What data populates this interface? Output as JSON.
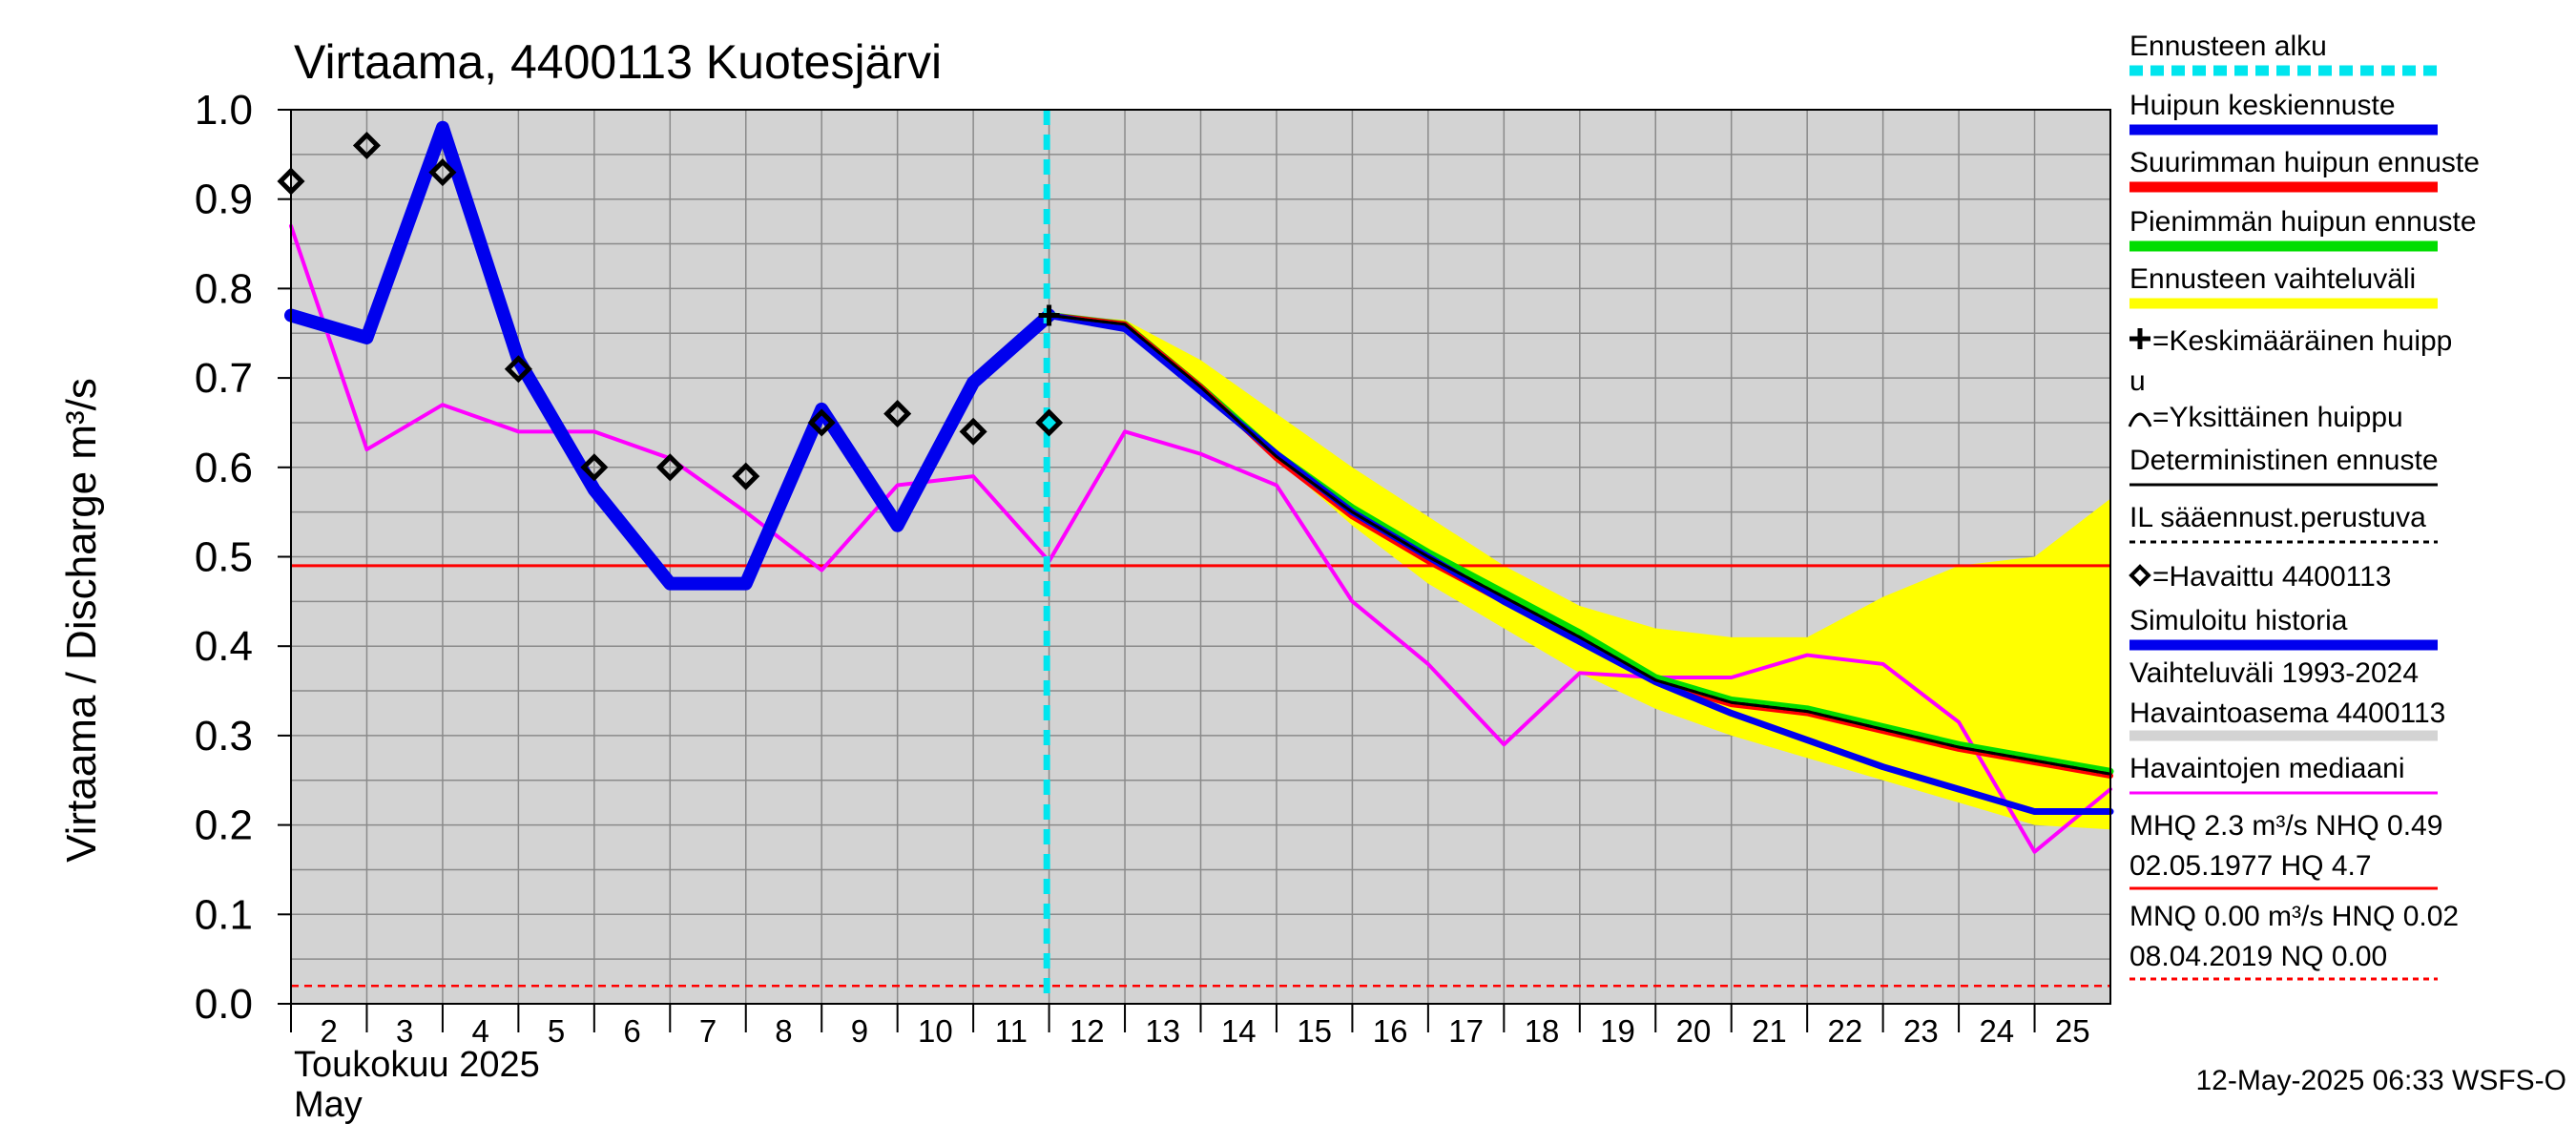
{
  "chart_data": {
    "type": "line",
    "title": "Virtaama, 4400113 Kuotesjärvi",
    "ylabel": "Virtaama / Discharge   m³/s",
    "ylim": [
      0.0,
      1.0
    ],
    "yticks": [
      "0.0",
      "0.1",
      "0.2",
      "0.3",
      "0.4",
      "0.5",
      "0.6",
      "0.7",
      "0.8",
      "0.9",
      "1.0"
    ],
    "x_day_range": [
      2,
      26
    ],
    "xtick_labels": [
      "2",
      "3",
      "4",
      "5",
      "6",
      "7",
      "8",
      "9",
      "10",
      "11",
      "12",
      "13",
      "14",
      "15",
      "16",
      "17",
      "18",
      "19",
      "20",
      "21",
      "22",
      "23",
      "24",
      "25"
    ],
    "month_label_fi": "Toukokuu  2025",
    "month_label_en": "May",
    "forecast_start_day": 11.97,
    "grid": true,
    "reference_lines": {
      "mhq_line": 0.49,
      "mnq_line": 0.02
    },
    "series": [
      {
        "name": "Simuloitu historia",
        "color": "#0000ee",
        "x": [
          2,
          3,
          4,
          5,
          6,
          7,
          8,
          9,
          10,
          11,
          12
        ],
        "y": [
          0.77,
          0.745,
          0.98,
          0.72,
          0.575,
          0.47,
          0.47,
          0.665,
          0.535,
          0.695,
          0.77
        ]
      },
      {
        "name": "Ennusteen vaihteluväli",
        "color": "#ffff00",
        "x": [
          12,
          13,
          14,
          15,
          16,
          17,
          18,
          19,
          20,
          21,
          22,
          23,
          24,
          25,
          26
        ],
        "upper": [
          0.77,
          0.765,
          0.72,
          0.66,
          0.6,
          0.545,
          0.49,
          0.445,
          0.42,
          0.41,
          0.41,
          0.455,
          0.49,
          0.5,
          0.565
        ],
        "lower": [
          0.77,
          0.755,
          0.69,
          0.61,
          0.535,
          0.47,
          0.42,
          0.37,
          0.33,
          0.3,
          0.275,
          0.25,
          0.225,
          0.2,
          0.195
        ]
      },
      {
        "name": "Suurimman huipun ennuste",
        "color": "#ff0000",
        "x": [
          12,
          13,
          14,
          15,
          16,
          17,
          18,
          19,
          20,
          21,
          22,
          23,
          24,
          25,
          26
        ],
        "y": [
          0.77,
          0.76,
          0.69,
          0.61,
          0.545,
          0.495,
          0.45,
          0.405,
          0.36,
          0.335,
          0.325,
          0.305,
          0.285,
          0.27,
          0.255
        ]
      },
      {
        "name": "Pienimmän huipun ennuste",
        "color": "#00dd00",
        "x": [
          12,
          13,
          14,
          15,
          16,
          17,
          18,
          19,
          20,
          21,
          22,
          23,
          24,
          25,
          26
        ],
        "y": [
          0.77,
          0.76,
          0.69,
          0.615,
          0.555,
          0.505,
          0.46,
          0.415,
          0.365,
          0.34,
          0.33,
          0.31,
          0.29,
          0.275,
          0.26
        ]
      },
      {
        "name": "Deterministinen ennuste",
        "color": "#000000",
        "x": [
          12,
          13,
          14,
          15,
          16,
          17,
          18,
          19,
          20,
          21,
          22,
          23,
          24,
          25,
          26
        ],
        "y": [
          0.77,
          0.76,
          0.69,
          0.612,
          0.55,
          0.5,
          0.455,
          0.41,
          0.362,
          0.337,
          0.327,
          0.307,
          0.287,
          0.272,
          0.257
        ]
      },
      {
        "name": "IL sääennust.perustuva",
        "color": "#000000",
        "x": [
          12,
          13,
          14,
          15,
          16,
          17,
          18,
          19,
          20,
          21,
          22,
          23,
          24,
          25,
          26
        ],
        "y": [
          0.77,
          0.76,
          0.69,
          0.612,
          0.55,
          0.5,
          0.455,
          0.41,
          0.362,
          0.337,
          0.327,
          0.307,
          0.287,
          0.272,
          0.257
        ]
      },
      {
        "name": "Huipun keskiennuste",
        "color": "#0000ee",
        "x": [
          12,
          13,
          14,
          15,
          16,
          17,
          18,
          19,
          20,
          21,
          22,
          23,
          24,
          25,
          26
        ],
        "y": [
          0.77,
          0.755,
          0.685,
          0.615,
          0.55,
          0.5,
          0.45,
          0.405,
          0.36,
          0.325,
          0.295,
          0.265,
          0.24,
          0.215,
          0.215
        ]
      },
      {
        "name": "Havaintojen mediaani",
        "color": "#ff00ff",
        "x": [
          2,
          3,
          4,
          5,
          6,
          7,
          8,
          9,
          10,
          11,
          12,
          13,
          14,
          15,
          16,
          17,
          18,
          19,
          20,
          21,
          22,
          23,
          24,
          25,
          26
        ],
        "y": [
          0.87,
          0.62,
          0.67,
          0.64,
          0.64,
          0.61,
          0.55,
          0.485,
          0.58,
          0.59,
          0.495,
          0.64,
          0.615,
          0.58,
          0.45,
          0.38,
          0.29,
          0.37,
          0.365,
          0.365,
          0.39,
          0.38,
          0.315,
          0.17,
          0.24
        ]
      },
      {
        "name": "Havaittu 4400113",
        "color": "#000000",
        "x": [
          2,
          3,
          4,
          5,
          6,
          7,
          8,
          9,
          10,
          11,
          12
        ],
        "y": [
          0.92,
          0.96,
          0.93,
          0.71,
          0.6,
          0.6,
          0.59,
          0.65,
          0.66,
          0.64,
          0.65
        ]
      },
      {
        "name": "Keskimääräinen huippu",
        "color": "#000000",
        "x": [
          12
        ],
        "y": [
          0.77
        ]
      }
    ]
  },
  "legend": {
    "items": [
      {
        "label": "Ennusteen alku",
        "color": "#00e5ee",
        "style": "dashed-thick"
      },
      {
        "label": "Huipun keskiennuste",
        "color": "#0000ee",
        "style": "solid-thick"
      },
      {
        "label": "Suurimman huipun ennuste",
        "color": "#ff0000",
        "style": "solid-thick"
      },
      {
        "label": "Pienimmän huipun ennuste",
        "color": "#00dd00",
        "style": "solid-thick"
      },
      {
        "label": "Ennusteen vaihteluväli",
        "color": "#ffff00",
        "style": "solid-thick"
      },
      {
        "label": "=Keskimääräinen huipp",
        "label2": "u",
        "color": "#000000",
        "style": "none",
        "icon": "plus"
      },
      {
        "label": "=Yksittäinen huippu",
        "color": "#000000",
        "style": "none",
        "icon": "arc"
      },
      {
        "label": "Deterministinen ennuste",
        "color": "#000000",
        "style": "solid-thin"
      },
      {
        "label": "IL sääennust.perustuva",
        "color": "#000000",
        "style": "dashed-thin"
      },
      {
        "label": "=Havaittu 4400113",
        "color": "#000000",
        "style": "none",
        "icon": "diamond"
      },
      {
        "label": "Simuloitu historia",
        "color": "#0000ee",
        "style": "solid-thick"
      },
      {
        "label": "Vaihteluväli 1993-2024",
        "label2": " Havaintoasema 4400113",
        "color": "#d3d3d3",
        "style": "solid-thick"
      },
      {
        "label": "Havaintojen mediaani",
        "color": "#ff00ff",
        "style": "solid-thin"
      },
      {
        "label": "MHQ  2.3 m³/s NHQ 0.49",
        "label2": "02.05.1977 HQ  4.7",
        "color": "#ff0000",
        "style": "solid-thin"
      },
      {
        "label": "MNQ 0.00 m³/s HNQ 0.02",
        "label2": "08.04.2019 NQ 0.00",
        "color": "#ff0000",
        "style": "dashed-thin"
      }
    ]
  },
  "footer": {
    "timestamp": "12-May-2025 06:33 WSFS-O"
  }
}
